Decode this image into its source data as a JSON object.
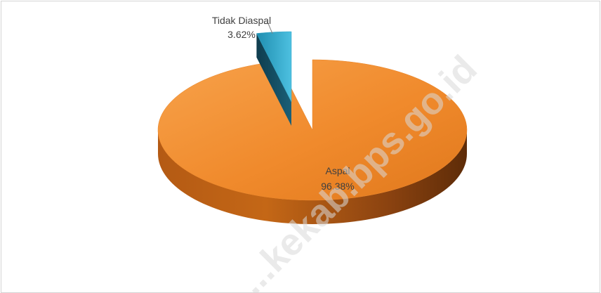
{
  "chart_data": {
    "type": "pie",
    "style": "3d-exploded",
    "slices": [
      {
        "label": "Aspal",
        "value": 96.38,
        "value_label": "96.38%",
        "color": "#f08a2c"
      },
      {
        "label": "Tidak Diaspal",
        "value": 3.62,
        "value_label": "3.62%",
        "color": "#2ea6c8"
      }
    ]
  },
  "watermark": "...kekab.bps.go.id"
}
